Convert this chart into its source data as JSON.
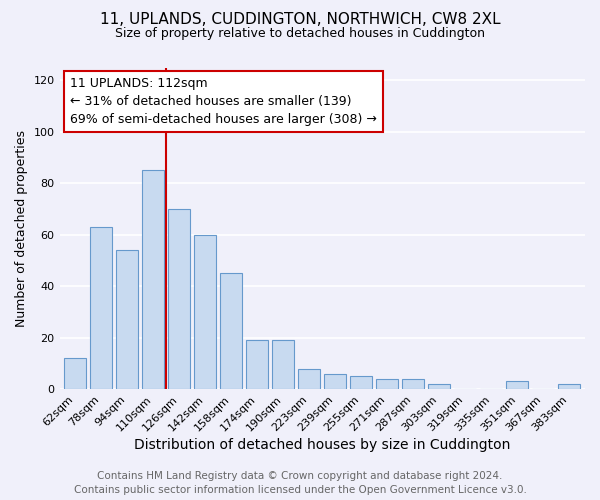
{
  "title": "11, UPLANDS, CUDDINGTON, NORTHWICH, CW8 2XL",
  "subtitle": "Size of property relative to detached houses in Cuddington",
  "xlabel": "Distribution of detached houses by size in Cuddington",
  "ylabel": "Number of detached properties",
  "bar_color": "#c8daf0",
  "bar_edge_color": "#6699cc",
  "categories": [
    "62sqm",
    "78sqm",
    "94sqm",
    "110sqm",
    "126sqm",
    "142sqm",
    "158sqm",
    "174sqm",
    "190sqm",
    "223sqm",
    "239sqm",
    "255sqm",
    "271sqm",
    "287sqm",
    "303sqm",
    "319sqm",
    "335sqm",
    "351sqm",
    "367sqm",
    "383sqm"
  ],
  "values": [
    12,
    63,
    54,
    85,
    70,
    60,
    45,
    19,
    19,
    8,
    6,
    5,
    4,
    4,
    2,
    0,
    0,
    3,
    0,
    2
  ],
  "ylim": [
    0,
    125
  ],
  "yticks": [
    0,
    20,
    40,
    60,
    80,
    100,
    120
  ],
  "annotation_line1": "11 UPLANDS: 112sqm",
  "annotation_line2": "← 31% of detached houses are smaller (139)",
  "annotation_line3": "69% of semi-detached houses are larger (308) →",
  "annotation_box_color": "#ffffff",
  "annotation_box_edge_color": "#cc0000",
  "property_line_x": 3.5,
  "property_line_color": "#cc0000",
  "footer_line1": "Contains HM Land Registry data © Crown copyright and database right 2024.",
  "footer_line2": "Contains public sector information licensed under the Open Government Licence v3.0.",
  "background_color": "#f0f0fa",
  "grid_color": "#ffffff",
  "title_fontsize": 11,
  "subtitle_fontsize": 9,
  "xlabel_fontsize": 10,
  "ylabel_fontsize": 9,
  "tick_fontsize": 8,
  "annotation_fontsize": 9,
  "footer_fontsize": 7.5
}
